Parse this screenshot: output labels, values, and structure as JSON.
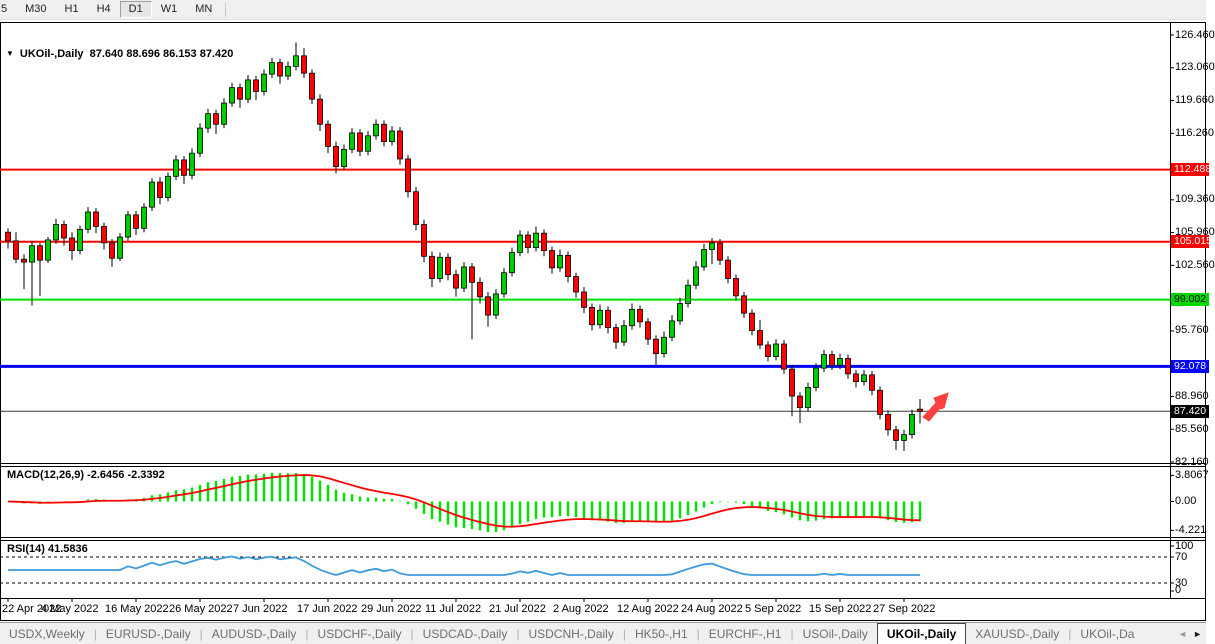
{
  "toolbar": {
    "timeframes": [
      {
        "label": "5",
        "active": false
      },
      {
        "label": "M30",
        "active": false
      },
      {
        "label": "H1",
        "active": false
      },
      {
        "label": "H4",
        "active": false
      },
      {
        "label": "D1",
        "active": true
      },
      {
        "label": "W1",
        "active": false
      },
      {
        "label": "MN",
        "active": false
      }
    ]
  },
  "chart": {
    "title": "UKOil-,Daily",
    "ohlc_text": "87.640 88.696 86.153 87.420",
    "price_axis_ticks": [
      126.46,
      123.06,
      119.66,
      116.26,
      109.36,
      105.96,
      102.56,
      95.76,
      88.96,
      85.56,
      82.16
    ],
    "price_tags": [
      {
        "text": "112.488",
        "price": 112.488,
        "bg": "#ff0000",
        "fg": "#ffffff"
      },
      {
        "text": "105.015",
        "price": 105.015,
        "bg": "#ff0000",
        "fg": "#ffffff"
      },
      {
        "text": "99.002",
        "price": 99.002,
        "bg": "#00d800",
        "fg": "#000000"
      },
      {
        "text": "92.078",
        "price": 92.078,
        "bg": "#0000ff",
        "fg": "#ffffff"
      },
      {
        "text": "87.420",
        "price": 87.42,
        "bg": "#000000",
        "fg": "#ffffff"
      }
    ],
    "levels": [
      {
        "price": 112.488,
        "color": "#ff0000",
        "width": 2,
        "name": "resistance-line-112488"
      },
      {
        "price": 105.015,
        "color": "#ff0000",
        "width": 2,
        "name": "resistance-line-105015"
      },
      {
        "price": 99.002,
        "color": "#00e000",
        "width": 2,
        "name": "support-line-99002"
      },
      {
        "price": 92.078,
        "color": "#0000ff",
        "width": 3,
        "name": "support-line-92078"
      },
      {
        "price": 87.42,
        "color": "#3a3a3a",
        "width": 1,
        "name": "bid-price-line"
      }
    ],
    "date_ticks": [
      "22 Apr 2022",
      "4 May 2022",
      "16 May 2022",
      "26 May 2022",
      "7 Jun 2022",
      "17 Jun 2022",
      "29 Jun 2022",
      "11 Jul 2022",
      "21 Jul 2022",
      "2 Aug 2022",
      "12 Aug 2022",
      "24 Aug 2022",
      "5 Sep 2022",
      "15 Sep 2022",
      "27 Sep 2022"
    ]
  },
  "indicators": {
    "macd": {
      "label": "MACD(12,26,9) -2.6456 -2.3392",
      "axis_values": [
        3.8067,
        0,
        -4.221
      ],
      "axis_texts": [
        "3.8067",
        "0.00",
        "-4.221"
      ]
    },
    "rsi": {
      "label": "RSI(14) 41.5836",
      "axis_values": [
        100,
        70,
        30,
        0
      ],
      "axis_texts": [
        "100",
        "70",
        "30",
        "0"
      ],
      "levels": [
        70,
        30
      ]
    }
  },
  "chart_data": {
    "type": "candlestick",
    "symbol": "UKOil-,Daily",
    "timeframe": "Daily",
    "x_range": [
      "22 Apr 2022",
      "29 Sep 2022"
    ],
    "y_range": [
      82.16,
      126.46
    ],
    "colors": {
      "candle_up": "#00cc00",
      "candle_down": "#ff0000",
      "candle_outline": "#000000",
      "wick": "#000000",
      "macd_histogram": "#00e000",
      "macd_signal": "#ff0000",
      "rsi_line": "#3e9bdb",
      "arrow": "#ff4040"
    },
    "candles": [
      [
        106.0,
        106.4,
        104.3,
        105.1
      ],
      [
        105.1,
        106.0,
        102.8,
        103.2
      ],
      [
        103.2,
        103.7,
        100.1,
        102.9
      ],
      [
        102.9,
        105.1,
        98.4,
        104.6
      ],
      [
        104.6,
        104.9,
        99.4,
        103.1
      ],
      [
        103.1,
        105.5,
        102.8,
        105.2
      ],
      [
        105.2,
        107.4,
        104.8,
        106.8
      ],
      [
        106.8,
        107.2,
        104.6,
        105.4
      ],
      [
        105.4,
        106.0,
        103.1,
        104.1
      ],
      [
        104.1,
        106.7,
        103.7,
        106.3
      ],
      [
        106.3,
        108.6,
        105.9,
        108.1
      ],
      [
        108.1,
        108.5,
        105.9,
        106.6
      ],
      [
        106.6,
        107.0,
        104.2,
        104.9
      ],
      [
        104.9,
        105.3,
        102.4,
        103.3
      ],
      [
        103.3,
        105.9,
        103.0,
        105.5
      ],
      [
        105.5,
        108.2,
        105.1,
        107.8
      ],
      [
        107.8,
        108.2,
        105.7,
        106.4
      ],
      [
        106.4,
        109.0,
        106.0,
        108.6
      ],
      [
        108.6,
        111.6,
        108.2,
        111.2
      ],
      [
        111.2,
        111.7,
        108.9,
        109.6
      ],
      [
        109.6,
        112.2,
        109.2,
        111.8
      ],
      [
        111.8,
        114.0,
        111.4,
        113.5
      ],
      [
        113.5,
        113.9,
        111.0,
        111.9
      ],
      [
        111.9,
        114.7,
        111.5,
        114.2
      ],
      [
        114.2,
        117.3,
        113.8,
        116.8
      ],
      [
        116.8,
        118.8,
        116.3,
        118.3
      ],
      [
        118.3,
        118.7,
        116.2,
        117.2
      ],
      [
        117.2,
        119.9,
        116.8,
        119.4
      ],
      [
        119.4,
        121.5,
        119.0,
        121.0
      ],
      [
        121.0,
        121.4,
        118.9,
        119.8
      ],
      [
        119.8,
        122.3,
        119.4,
        121.8
      ],
      [
        121.8,
        122.2,
        119.7,
        120.6
      ],
      [
        120.6,
        122.9,
        120.2,
        122.4
      ],
      [
        122.4,
        124.1,
        122.0,
        123.6
      ],
      [
        123.6,
        124.0,
        121.4,
        122.2
      ],
      [
        122.2,
        123.7,
        121.8,
        123.2
      ],
      [
        123.2,
        125.7,
        122.8,
        124.3
      ],
      [
        124.3,
        125.1,
        122.0,
        122.5
      ],
      [
        122.5,
        122.9,
        119.3,
        119.8
      ],
      [
        119.8,
        120.3,
        116.5,
        117.2
      ],
      [
        117.2,
        117.6,
        114.2,
        114.9
      ],
      [
        114.9,
        115.4,
        112.1,
        112.8
      ],
      [
        112.8,
        115.1,
        112.4,
        114.6
      ],
      [
        114.6,
        116.8,
        114.2,
        116.3
      ],
      [
        116.3,
        116.7,
        113.9,
        114.4
      ],
      [
        114.4,
        116.5,
        114.0,
        116.0
      ],
      [
        116.0,
        117.7,
        115.6,
        117.2
      ],
      [
        117.2,
        117.6,
        114.9,
        115.4
      ],
      [
        115.4,
        117.0,
        115.0,
        116.5
      ],
      [
        116.5,
        116.9,
        113.0,
        113.6
      ],
      [
        113.6,
        114.0,
        109.6,
        110.2
      ],
      [
        110.2,
        110.7,
        106.2,
        106.8
      ],
      [
        106.8,
        107.3,
        102.9,
        103.5
      ],
      [
        103.5,
        104.0,
        100.3,
        101.2
      ],
      [
        101.2,
        103.9,
        100.8,
        103.4
      ],
      [
        103.4,
        103.8,
        101.0,
        101.6
      ],
      [
        101.6,
        102.1,
        99.3,
        100.2
      ],
      [
        100.2,
        102.9,
        99.8,
        102.4
      ],
      [
        102.4,
        102.8,
        94.9,
        100.8
      ],
      [
        100.8,
        101.3,
        98.6,
        99.3
      ],
      [
        99.3,
        99.8,
        96.2,
        97.4
      ],
      [
        97.4,
        100.1,
        97.0,
        99.6
      ],
      [
        99.6,
        102.3,
        99.2,
        101.8
      ],
      [
        101.8,
        104.4,
        101.4,
        103.9
      ],
      [
        103.9,
        106.2,
        103.5,
        105.7
      ],
      [
        105.7,
        106.1,
        103.8,
        104.4
      ],
      [
        104.4,
        106.6,
        104.0,
        105.9
      ],
      [
        105.9,
        106.3,
        103.5,
        104.1
      ],
      [
        104.1,
        104.5,
        101.7,
        102.3
      ],
      [
        102.3,
        104.2,
        101.9,
        103.6
      ],
      [
        103.6,
        104.0,
        100.8,
        101.4
      ],
      [
        101.4,
        101.8,
        99.2,
        99.8
      ],
      [
        99.8,
        100.3,
        97.6,
        98.2
      ],
      [
        98.2,
        98.6,
        95.8,
        96.4
      ],
      [
        96.4,
        98.5,
        96.0,
        97.9
      ],
      [
        97.9,
        98.3,
        95.5,
        96.1
      ],
      [
        96.1,
        96.5,
        93.9,
        94.6
      ],
      [
        94.6,
        96.9,
        94.2,
        96.3
      ],
      [
        96.3,
        98.6,
        95.9,
        98.0
      ],
      [
        98.0,
        98.4,
        96.1,
        96.7
      ],
      [
        96.7,
        97.1,
        94.3,
        94.9
      ],
      [
        94.9,
        95.3,
        92.2,
        93.4
      ],
      [
        93.4,
        95.7,
        93.0,
        95.1
      ],
      [
        95.1,
        97.4,
        94.7,
        96.8
      ],
      [
        96.8,
        99.2,
        96.4,
        98.6
      ],
      [
        98.6,
        101.1,
        98.2,
        100.5
      ],
      [
        100.5,
        103.0,
        100.1,
        102.4
      ],
      [
        102.4,
        104.8,
        102.0,
        104.2
      ],
      [
        104.2,
        105.4,
        102.7,
        104.9
      ],
      [
        104.9,
        105.3,
        102.6,
        103.1
      ],
      [
        103.1,
        103.5,
        100.7,
        101.2
      ],
      [
        101.2,
        101.6,
        98.9,
        99.4
      ],
      [
        99.4,
        99.8,
        97.1,
        97.6
      ],
      [
        97.6,
        98.0,
        95.3,
        95.8
      ],
      [
        95.8,
        96.9,
        93.9,
        94.3
      ],
      [
        94.3,
        94.7,
        92.6,
        93.1
      ],
      [
        93.1,
        94.9,
        92.7,
        94.4
      ],
      [
        94.4,
        94.8,
        91.3,
        91.8
      ],
      [
        91.8,
        92.2,
        86.9,
        89.0
      ],
      [
        89.0,
        89.4,
        86.2,
        87.8
      ],
      [
        87.8,
        90.4,
        87.4,
        89.9
      ],
      [
        89.9,
        92.4,
        89.5,
        91.9
      ],
      [
        91.9,
        93.8,
        91.5,
        93.3
      ],
      [
        93.3,
        93.7,
        91.7,
        92.2
      ],
      [
        92.2,
        93.4,
        91.8,
        92.9
      ],
      [
        92.9,
        93.3,
        90.8,
        91.3
      ],
      [
        91.3,
        91.7,
        89.9,
        90.5
      ],
      [
        90.5,
        91.7,
        90.1,
        91.2
      ],
      [
        91.2,
        91.6,
        89.1,
        89.6
      ],
      [
        89.6,
        90.0,
        86.6,
        87.1
      ],
      [
        87.1,
        87.5,
        84.9,
        85.5
      ],
      [
        85.5,
        85.9,
        83.4,
        84.4
      ],
      [
        84.4,
        85.5,
        83.3,
        85.0
      ],
      [
        85.0,
        87.6,
        84.6,
        87.1
      ],
      [
        87.64,
        88.696,
        86.153,
        87.42
      ]
    ]
  },
  "tabs": {
    "items": [
      {
        "label": "USDX,Weekly",
        "active": false
      },
      {
        "label": "EURUSD-,Daily",
        "active": false
      },
      {
        "label": "AUDUSD-,Daily",
        "active": false
      },
      {
        "label": "USDCHF-,Daily",
        "active": false
      },
      {
        "label": "USDCAD-,Daily",
        "active": false
      },
      {
        "label": "USDCNH-,Daily",
        "active": false
      },
      {
        "label": "HK50-,H1",
        "active": false
      },
      {
        "label": "EURCHF-,H1",
        "active": false
      },
      {
        "label": "USOil-,Daily",
        "active": false
      },
      {
        "label": "UKOil-,Daily",
        "active": true
      },
      {
        "label": "XAUUSD-,Daily",
        "active": false
      },
      {
        "label": "UKOil-,Da",
        "active": false
      }
    ],
    "scroll_left_icon": "◄",
    "scroll_right_icon": "►"
  }
}
